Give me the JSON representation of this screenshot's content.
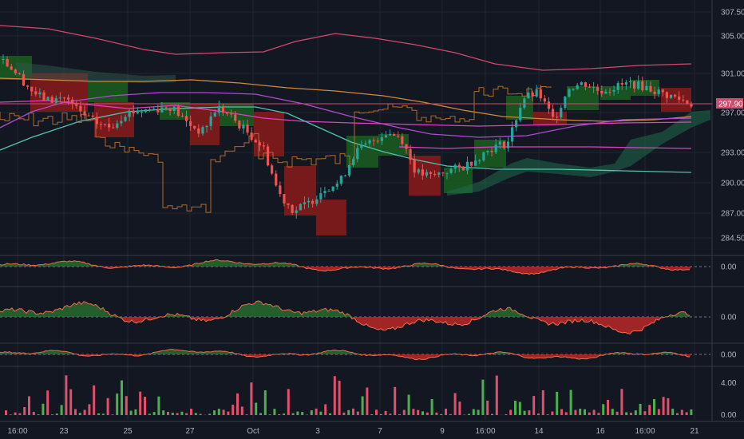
{
  "colors": {
    "background": "#131722",
    "grid": "#1f2430",
    "pane_border": "#363a45",
    "axis_text": "#b2b5be",
    "up": "#26a69a",
    "down": "#ef5350",
    "bar_up": "#2e7d32",
    "bar_down": "#c62828",
    "box_up": "#1b5e20",
    "box_down": "#8b1a1a",
    "ma_red": "#d04a6a",
    "ma_orange": "#d08a3a",
    "ma_purple": "#b04ad0",
    "ma_magenta": "#e040c0",
    "ma_teal": "#4fc3b0",
    "price_line": "#d34a6e",
    "price_tag": "#d34a6e"
  },
  "x_axis": {
    "labels": [
      "16:00",
      "23",
      "25",
      "27",
      "Oct",
      "3",
      "7",
      "9",
      "16:00",
      "14",
      "16",
      "16:00",
      "21"
    ]
  },
  "price_axis": {
    "ticks": [
      "307.50",
      "305.00",
      "301.00",
      "297.00",
      "293.00",
      "290.00",
      "287.00",
      "284.50"
    ],
    "last_price": "297.90"
  },
  "osc1_axis": {
    "ticks": [
      "0.00"
    ]
  },
  "osc2_axis": {
    "ticks": [
      "0.00"
    ]
  },
  "osc3_axis": {
    "ticks": [
      "0.00"
    ]
  },
  "volume_axis": {
    "ticks": [
      "4.00",
      "0.00"
    ]
  },
  "chart_data": [
    {
      "type": "candlestick",
      "panel": "price",
      "x": [
        "16:00",
        "23",
        "25",
        "27",
        "Oct",
        "3",
        "7",
        "9",
        "16:00",
        "14",
        "16",
        "16:00",
        "21"
      ],
      "y_ticks": [
        307.5,
        305.0,
        301.0,
        297.0,
        293.0,
        290.0,
        287.0,
        284.5
      ],
      "ylim": [
        283.5,
        308.5
      ],
      "last_price": 297.9,
      "close_approx": [
        302.5,
        300.8,
        299.0,
        298.2,
        298.6,
        297.0,
        296.0,
        295.5,
        297.0,
        297.2,
        297.4,
        297.6,
        296.0,
        295.0,
        297.6,
        296.4,
        295.0,
        293.5,
        289.0,
        287.2,
        288.0,
        289.5,
        290.0,
        293.0,
        294.0,
        295.0,
        294.6,
        291.0,
        290.6,
        291.2,
        291.5,
        292.5,
        293.5,
        294.0,
        298.5,
        299.0,
        296.2,
        299.6,
        300.0,
        299.2,
        299.6,
        300.0,
        299.6,
        299.0,
        298.5,
        297.9
      ]
    },
    {
      "type": "area",
      "panel": "oscillator-1",
      "y_ticks": [
        0.0
      ]
    },
    {
      "type": "area",
      "panel": "oscillator-2",
      "y_ticks": [
        0.0
      ]
    },
    {
      "type": "area",
      "panel": "oscillator-3",
      "y_ticks": [
        0.0
      ]
    },
    {
      "type": "bar",
      "panel": "volume",
      "y_ticks": [
        4.0,
        0.0
      ],
      "ylim": [
        0,
        5
      ]
    }
  ]
}
